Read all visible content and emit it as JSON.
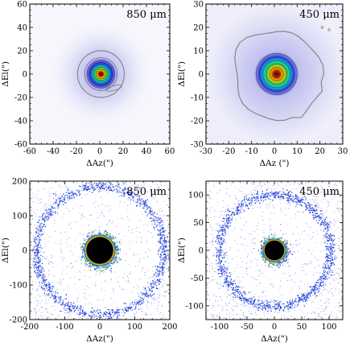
{
  "figure": {
    "panels": [
      {
        "band_label": "850 μm",
        "xlabel": "ΔAz(\")",
        "ylabel": "ΔEl(\")",
        "xlim": [
          -60,
          60
        ],
        "ylim": [
          -60,
          60
        ],
        "xticks": [
          "-60",
          "-40",
          "-20",
          "0",
          "20",
          "40",
          "60"
        ],
        "yticks": [
          "-60",
          "-40",
          "-20",
          "0",
          "20",
          "40",
          "60"
        ]
      },
      {
        "band_label": "450 μm",
        "xlabel": "ΔAz (\")",
        "ylabel": "ΔEl(\")",
        "xlim": [
          -30,
          30
        ],
        "ylim": [
          -30,
          30
        ],
        "xticks": [
          "-30",
          "-20",
          "-10",
          "0",
          "10",
          "20",
          "30"
        ],
        "yticks": [
          "-30",
          "-20",
          "-10",
          "0",
          "10",
          "20",
          "30"
        ]
      },
      {
        "band_label": "850 μm",
        "xlabel": "ΔAz(\")",
        "ylabel": "ΔEl(\")",
        "xlim": [
          -200,
          200
        ],
        "ylim": [
          -200,
          200
        ],
        "xticks": [
          "-200",
          "-100",
          "0",
          "100",
          "200"
        ],
        "yticks": [
          "-200",
          "-100",
          "0",
          "100",
          "200"
        ]
      },
      {
        "band_label": "450 μm",
        "xlabel": "ΔAz(\")",
        "ylabel": "ΔEl(\")",
        "xlim": [
          -125,
          125
        ],
        "ylim": [
          -125,
          125
        ],
        "xticks": [
          "-100",
          "-50",
          "0",
          "50",
          "100"
        ],
        "yticks": [
          "-100",
          "-50",
          "0",
          "50",
          "100"
        ]
      }
    ]
  },
  "chart_data": [
    {
      "type": "heatmap",
      "band": "850 μm",
      "xlabel": "ΔAz(\")",
      "ylabel": "ΔEl(\")",
      "xlim": [
        -60,
        60
      ],
      "ylim": [
        -60,
        60
      ],
      "beam_center": [
        1,
        0
      ],
      "contour_radii": [
        2,
        4,
        6,
        8,
        10,
        12,
        14,
        20
      ],
      "outer_contour_radius": 20,
      "grid": false,
      "colormap": [
        "#ffffff",
        "#d6d6f5",
        "#2a2ad8",
        "#00c8d8",
        "#20d020",
        "#f0e000",
        "#e82000",
        "#000000"
      ]
    },
    {
      "type": "heatmap",
      "band": "450 μm",
      "xlabel": "ΔAz (\")",
      "ylabel": "ΔEl(\")",
      "xlim": [
        -30,
        30
      ],
      "ylim": [
        -30,
        30
      ],
      "beam_center": [
        1,
        0
      ],
      "contour_radii": [
        1.5,
        3,
        4.5,
        6,
        7.5,
        9
      ],
      "outer_contour_radius": 19,
      "grid": false,
      "colormap": [
        "#ffffff",
        "#d6d6f5",
        "#2a2ad8",
        "#00c8d8",
        "#20d020",
        "#f0e000",
        "#e82000",
        "#000000"
      ]
    },
    {
      "type": "heatmap",
      "band": "850 μm",
      "xlabel": "ΔAz(\")",
      "ylabel": "ΔEl(\")",
      "xlim": [
        -200,
        200
      ],
      "ylim": [
        -200,
        200
      ],
      "saturated_core_radius": 38,
      "error_ring_radius": 183,
      "grid": false
    },
    {
      "type": "heatmap",
      "band": "450 μm",
      "xlabel": "ΔAz(\")",
      "ylabel": "ΔEl(\")",
      "xlim": [
        -125,
        125
      ],
      "ylim": [
        -125,
        125
      ],
      "saturated_core_radius": 18,
      "error_ring_radius": 102,
      "grid": false
    }
  ]
}
